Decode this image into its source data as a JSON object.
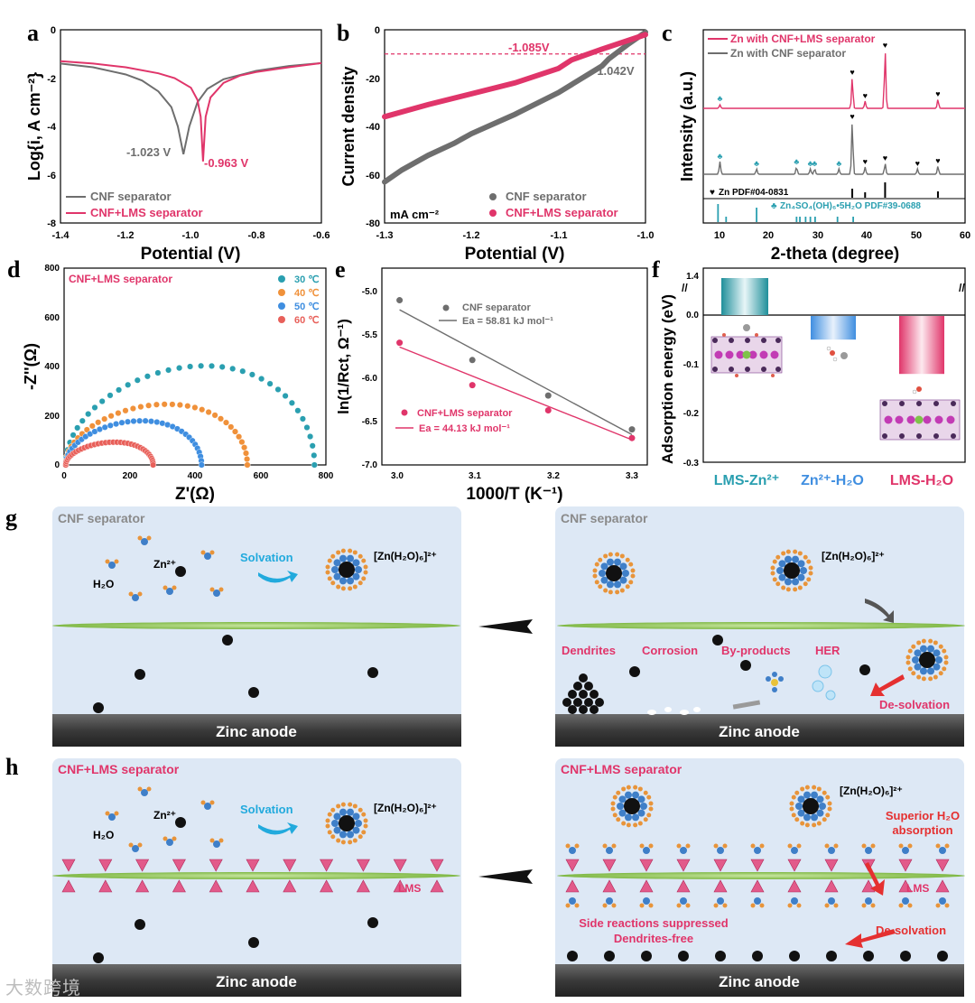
{
  "panels": {
    "a": {
      "letter": "a",
      "xlabel": "Potential (V)",
      "ylabel": "Log{i, A cm⁻²}",
      "xticks": [
        "-1.4",
        "-1.2",
        "-1.0",
        "-0.8",
        "-0.6"
      ],
      "yticks": [
        "0",
        "-2",
        "-4",
        "-6",
        "-8"
      ],
      "ann1": "-1.023 V",
      "ann2": "-0.963 V",
      "legend1": "CNF separator",
      "legend2": "CNF+LMS separator"
    },
    "b": {
      "letter": "b",
      "xlabel": "Potential (V)",
      "ylabel": "Current density",
      "xticks": [
        "-1.3",
        "-1.2",
        "-1.1",
        "-1.0"
      ],
      "yticks": [
        "0",
        "-20",
        "-40",
        "-60",
        "-80"
      ],
      "unit": "mA cm⁻²",
      "ann1": "-1.085V",
      "ann2": "-1.042V",
      "legend1": "CNF separator",
      "legend2": "CNF+LMS separator"
    },
    "c": {
      "letter": "c",
      "xlabel": "2-theta (degree)",
      "ylabel": "Intensity (a.u.)",
      "xticks": [
        "10",
        "20",
        "30",
        "40",
        "50",
        "60"
      ],
      "legend1": "Zn with CNF+LMS separator",
      "legend2": "Zn with CNF separator",
      "ref1": "Zn PDF#04-0831",
      "ref2": "Zn₄SO₄(OH)₆•5H₂O  PDF#39-0688"
    },
    "d": {
      "letter": "d",
      "xlabel": "Z'(Ω)",
      "ylabel": "-Z''(Ω)",
      "title": "CNF+LMS separator",
      "xticks": [
        "0",
        "200",
        "400",
        "600",
        "800"
      ],
      "yticks": [
        "0",
        "200",
        "400",
        "600",
        "800"
      ],
      "temps": [
        "30 ℃",
        "40 ℃",
        "50 ℃",
        "60 ℃"
      ]
    },
    "e": {
      "letter": "e",
      "xlabel": "1000/T (K⁻¹)",
      "ylabel": "ln(1/Rct, Ω⁻¹)",
      "xticks": [
        "3.0",
        "3.1",
        "3.2",
        "3.3"
      ],
      "yticks": [
        "-5.0",
        "-5.5",
        "-6.0",
        "-6.5",
        "-7.0"
      ],
      "legend1": "CNF separator",
      "ea1": "Ea = 58.81 kJ mol⁻¹",
      "legend2": "CNF+LMS separator",
      "ea2": "Ea = 44.13 kJ mol⁻¹"
    },
    "f": {
      "letter": "f",
      "ylabel": "Adsorption energy (eV)",
      "yticks": [
        "1.4",
        "0.0",
        "-0.1",
        "-0.2",
        "-0.3"
      ],
      "cat1": "LMS-Zn²⁺",
      "cat2": "Zn²⁺-H₂O",
      "cat3": "LMS-H₂O"
    },
    "g": {
      "letter": "g",
      "title_left": "CNF separator",
      "title_right": "CNF separator",
      "h2o": "H₂O",
      "zn": "Zn²⁺",
      "solvation": "Solvation",
      "complex": "[Zn(H₂O)₆]²⁺",
      "anode": "Zinc anode",
      "dendrites": "Dendrites",
      "corrosion": "Corrosion",
      "byproducts": "By-products",
      "her": "HER",
      "desolvation": "De-solvation"
    },
    "h": {
      "letter": "h",
      "title_left": "CNF+LMS separator",
      "title_right": "CNF+LMS separator",
      "h2o": "H₂O",
      "zn": "Zn²⁺",
      "solvation": "Solvation",
      "complex": "[Zn(H₂O)₆]²⁺",
      "lms": "LMS",
      "anode": "Zinc anode",
      "superior": "Superior H₂O",
      "absorption": "absorption",
      "side": "Side reactions suppressed",
      "dfree": "Dendrites-free",
      "desolvation": "De-solvation"
    }
  },
  "watermark": "大数跨境",
  "colors": {
    "gray": "#6e6e6e",
    "pink": "#e0356a",
    "teal": "#2a9fb0",
    "orange": "#f0913a",
    "blue": "#3f8ee0",
    "red": "#e8605a",
    "panel_bg": "#dde8f5"
  },
  "chart_data": [
    {
      "type": "line",
      "panel": "a",
      "title": "",
      "xlabel": "Potential (V)",
      "ylabel": "Log{i, A cm-2}",
      "xlim": [
        -1.4,
        -0.6
      ],
      "ylim": [
        -8,
        0
      ],
      "series": [
        {
          "name": "CNF separator",
          "x": [
            -1.4,
            -1.3,
            -1.2,
            -1.15,
            -1.1,
            -1.06,
            -1.04,
            -1.023,
            -1.005,
            -0.98,
            -0.95,
            -0.9,
            -0.8,
            -0.7,
            -0.6
          ],
          "y": [
            -1.4,
            -1.55,
            -1.85,
            -2.1,
            -2.55,
            -3.2,
            -4.0,
            -5.15,
            -4.0,
            -3.0,
            -2.45,
            -2.05,
            -1.7,
            -1.5,
            -1.38
          ]
        },
        {
          "name": "CNF+LMS separator",
          "x": [
            -1.4,
            -1.3,
            -1.2,
            -1.1,
            -1.05,
            -1.0,
            -0.98,
            -0.97,
            -0.963,
            -0.955,
            -0.94,
            -0.9,
            -0.85,
            -0.8,
            -0.7,
            -0.6
          ],
          "y": [
            -1.3,
            -1.4,
            -1.55,
            -1.8,
            -2.0,
            -2.4,
            -2.9,
            -3.6,
            -5.45,
            -3.6,
            -2.8,
            -2.2,
            -1.9,
            -1.75,
            -1.55,
            -1.38
          ]
        }
      ],
      "annotations": [
        "-1.023 V",
        "-0.963 V"
      ]
    },
    {
      "type": "scatter",
      "panel": "b",
      "title": "",
      "xlabel": "Potential (V)",
      "ylabel": "Current density (mA cm-2)",
      "xlim": [
        -1.3,
        -1.0
      ],
      "ylim": [
        -80,
        0
      ],
      "reference_line": -10,
      "series": [
        {
          "name": "CNF separator",
          "x": [
            -1.3,
            -1.28,
            -1.25,
            -1.22,
            -1.2,
            -1.15,
            -1.1,
            -1.05,
            -1.042,
            -1.02,
            -1.0
          ],
          "y": [
            -63,
            -58,
            -52,
            -47,
            -43,
            -35,
            -26,
            -15,
            -12,
            -6,
            -1
          ]
        },
        {
          "name": "CNF+LMS separator",
          "x": [
            -1.3,
            -1.25,
            -1.2,
            -1.15,
            -1.1,
            -1.085,
            -1.05,
            -1.0
          ],
          "y": [
            -36,
            -31,
            -26.5,
            -22,
            -16,
            -12.5,
            -8,
            -2
          ]
        }
      ],
      "annotations": [
        "-1.085V",
        "-1.042V"
      ]
    },
    {
      "type": "line",
      "panel": "c",
      "title": "",
      "xlabel": "2-theta (degree)",
      "ylabel": "Intensity (a.u.)",
      "xlim": [
        5,
        60
      ],
      "series": [
        {
          "name": "Zn with CNF+LMS separator",
          "peaks": [
            8.5,
            36.3,
            39.0,
            43.2,
            54.3
          ]
        },
        {
          "name": "Zn with CNF separator",
          "peaks": [
            8.5,
            16.2,
            24.6,
            27.5,
            28.4,
            33.5,
            36.3,
            39.0,
            43.2,
            50.0,
            54.3
          ]
        },
        {
          "name": "Zn PDF#04-0831",
          "peaks": [
            36.3,
            39.0,
            43.2,
            54.3
          ]
        },
        {
          "name": "Zn4SO4(OH)6•5H2O PDF#39-0688",
          "peaks": [
            8.1,
            9.8,
            16.2,
            24.6,
            25.3,
            26.5,
            27.5,
            28.5,
            33.2,
            36.5
          ]
        }
      ]
    },
    {
      "type": "scatter",
      "panel": "d",
      "title": "CNF+LMS separator",
      "xlabel": "Z'(Ω)",
      "ylabel": "-Z''(Ω)",
      "xlim": [
        0,
        800
      ],
      "ylim": [
        0,
        800
      ],
      "series": [
        {
          "name": "30 ℃",
          "start": 5,
          "end": 765,
          "peak": 400
        },
        {
          "name": "40 ℃",
          "start": 5,
          "end": 560,
          "peak": 245
        },
        {
          "name": "50 ℃",
          "start": 5,
          "end": 420,
          "peak": 178
        },
        {
          "name": "60 ℃",
          "start": 5,
          "end": 272,
          "peak": 92
        }
      ]
    },
    {
      "type": "scatter",
      "panel": "e",
      "title": "",
      "xlabel": "1000/T (K-1)",
      "ylabel": "ln(1/Rct, Ω-1)",
      "xlim": [
        2.98,
        3.32
      ],
      "ylim": [
        -7.0,
        -4.9
      ],
      "series": [
        {
          "name": "CNF separator",
          "x": [
            3.003,
            3.096,
            3.193,
            3.3
          ],
          "y": [
            -5.11,
            -5.8,
            -6.21,
            -6.6
          ],
          "fit": [
            -5.22,
            -6.66
          ],
          "Ea": "58.81 kJ mol-1"
        },
        {
          "name": "CNF+LMS separator",
          "x": [
            3.003,
            3.096,
            3.193,
            3.3
          ],
          "y": [
            -5.6,
            -6.09,
            -6.38,
            -6.7
          ],
          "fit": [
            -5.65,
            -6.72
          ],
          "Ea": "44.13 kJ mol-1"
        }
      ]
    },
    {
      "type": "bar",
      "panel": "f",
      "title": "",
      "xlabel": "",
      "ylabel": "Adsorption energy (eV)",
      "categories": [
        "LMS-Zn²⁺",
        "Zn²⁺-H₂O",
        "LMS-H₂O"
      ],
      "values": [
        1.4,
        -0.05,
        -0.12
      ]
    }
  ]
}
